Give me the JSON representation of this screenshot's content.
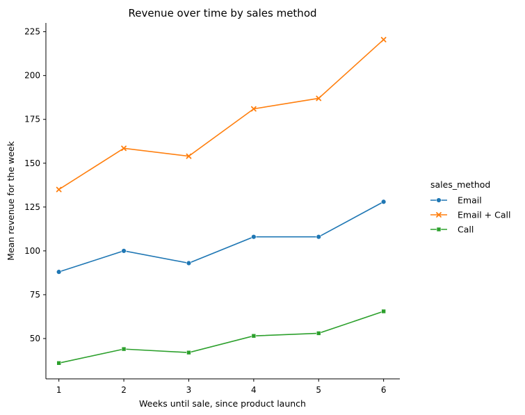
{
  "chart_data": {
    "type": "line",
    "title": "Revenue over time by sales method",
    "xlabel": "Weeks until sale, since product launch",
    "ylabel": "Mean revenue for the week",
    "x": [
      1,
      2,
      3,
      4,
      5,
      6
    ],
    "xlim": [
      0.8,
      6.25
    ],
    "ylim": [
      27,
      230
    ],
    "xticks": [
      1,
      2,
      3,
      4,
      5,
      6
    ],
    "yticks": [
      50,
      75,
      100,
      125,
      150,
      175,
      200,
      225
    ],
    "grid": false,
    "legend": {
      "title": "sales_method",
      "placement": "right"
    },
    "series": [
      {
        "name": "Email",
        "color": "#1f77b4",
        "marker": "circle",
        "values": [
          88,
          100,
          93,
          108,
          108,
          128
        ]
      },
      {
        "name": "Email + Call",
        "color": "#ff7f0e",
        "marker": "x",
        "values": [
          135,
          158.5,
          154,
          181,
          187,
          220.5
        ]
      },
      {
        "name": "Call",
        "color": "#2ca02c",
        "marker": "square",
        "values": [
          36,
          44,
          42,
          51.5,
          53,
          65.5
        ]
      }
    ]
  }
}
